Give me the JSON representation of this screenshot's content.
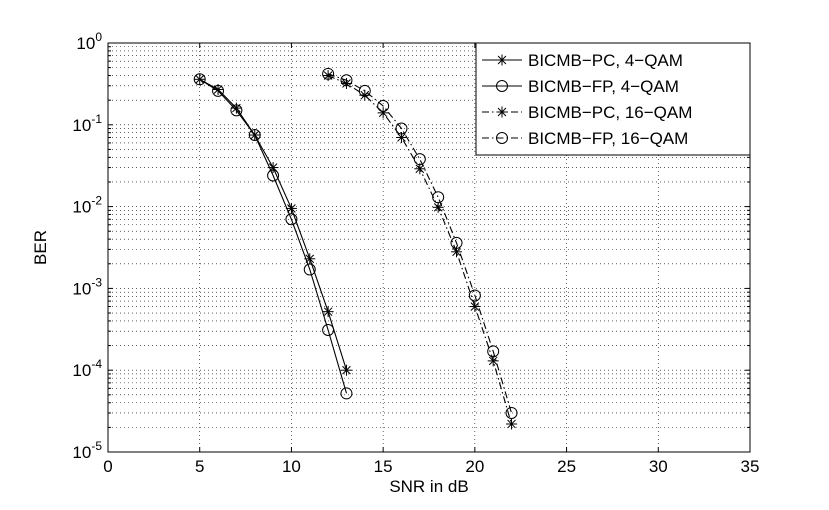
{
  "chart_data": {
    "type": "line",
    "xlabel": "SNR in dB",
    "ylabel": "BER",
    "xlim": [
      0,
      35
    ],
    "ylim": [
      1e-05,
      1
    ],
    "yscale": "log",
    "grid": true,
    "legend_position": "top-right",
    "x_ticks": [
      "0",
      "5",
      "10",
      "15",
      "20",
      "25",
      "30",
      "35"
    ],
    "y_ticks": [
      {
        "base": "10",
        "exp": "0",
        "value": 1
      },
      {
        "base": "10",
        "exp": "-1",
        "value": 0.1
      },
      {
        "base": "10",
        "exp": "-2",
        "value": 0.01
      },
      {
        "base": "10",
        "exp": "-3",
        "value": 0.001
      },
      {
        "base": "10",
        "exp": "-4",
        "value": 0.0001
      },
      {
        "base": "10",
        "exp": "-5",
        "value": 1e-05
      }
    ],
    "series": [
      {
        "name": "BICMB−PC, 4−QAM",
        "marker": "star",
        "line_style": "solid",
        "x": [
          5,
          6,
          7,
          8,
          9,
          10,
          11,
          12,
          13
        ],
        "y": [
          0.36,
          0.27,
          0.16,
          0.075,
          0.03,
          0.0095,
          0.0023,
          0.00052,
          0.0001
        ]
      },
      {
        "name": "BICMB−FP, 4−QAM",
        "marker": "circle",
        "line_style": "solid",
        "x": [
          5,
          6,
          7,
          8,
          9,
          10,
          11,
          12,
          13
        ],
        "y": [
          0.36,
          0.26,
          0.15,
          0.075,
          0.024,
          0.007,
          0.0017,
          0.00031,
          5.2e-05
        ]
      },
      {
        "name": "BICMB−PC, 16−QAM",
        "marker": "star",
        "line_style": "dashdot",
        "x": [
          12,
          13,
          14,
          15,
          16,
          17,
          18,
          19,
          20,
          21,
          22
        ],
        "y": [
          0.4,
          0.32,
          0.23,
          0.14,
          0.07,
          0.029,
          0.0098,
          0.0028,
          0.0006,
          0.00013,
          2.2e-05
        ]
      },
      {
        "name": "BICMB−FP, 16−QAM",
        "marker": "circle",
        "line_style": "dashdot",
        "x": [
          12,
          13,
          14,
          15,
          16,
          17,
          18,
          19,
          20,
          21,
          22
        ],
        "y": [
          0.42,
          0.35,
          0.26,
          0.17,
          0.09,
          0.038,
          0.013,
          0.0036,
          0.00082,
          0.00017,
          3e-05
        ]
      }
    ]
  }
}
